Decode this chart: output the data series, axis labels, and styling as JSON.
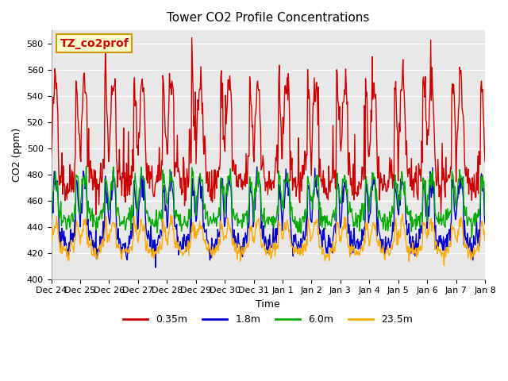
{
  "title": "Tower CO2 Profile Concentrations",
  "xlabel": "Time",
  "ylabel": "CO2 (ppm)",
  "ylim": [
    400,
    590
  ],
  "yticks": [
    400,
    420,
    440,
    460,
    480,
    500,
    520,
    540,
    560,
    580
  ],
  "series_labels": [
    "0.35m",
    "1.8m",
    "6.0m",
    "23.5m"
  ],
  "series_colors": [
    "#cc0000",
    "#0000cc",
    "#00aa00",
    "#ffaa00"
  ],
  "xtick_labels": [
    "Dec 24",
    "Dec 25",
    "Dec 26",
    "Dec 27",
    "Dec 28",
    "Dec 29",
    "Dec 30",
    "Dec 31",
    "Jan 1",
    "Jan 2",
    "Jan 3",
    "Jan 4",
    "Jan 5",
    "Jan 6",
    "Jan 7",
    "Jan 8"
  ],
  "annotation_text": "TZ_co2prof",
  "annotation_bg": "#ffffcc",
  "annotation_border": "#cc9900",
  "background_outer": "#ffffff",
  "background_inner": "#e8e8e8",
  "grid_color": "#ffffff",
  "seed": 42,
  "n_days": 15,
  "points_per_day": 48
}
